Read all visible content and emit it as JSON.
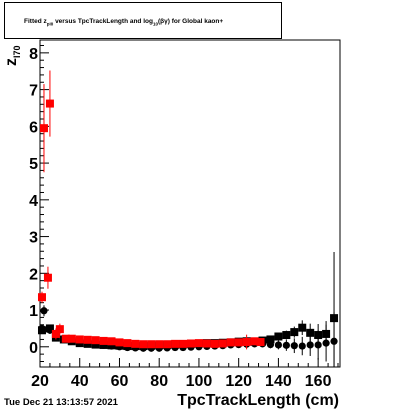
{
  "chart_data": {
    "type": "scatter",
    "title_parts": {
      "pre": "Fitted  z",
      "pre_sub": "pi0",
      "mid": "  versus  TpcTrackLength and log",
      "mid_sub": "10",
      "post": "(βγ) for Global kaon+"
    },
    "xlabel": "TpcTrackLength (cm)",
    "ylabel": "z",
    "ylabel_sub": "I70",
    "xlim": [
      20,
      171
    ],
    "ylim": [
      -0.55,
      8.35
    ],
    "x_ticks": [
      20,
      40,
      60,
      80,
      100,
      120,
      140,
      160
    ],
    "y_ticks": [
      0,
      1,
      2,
      3,
      4,
      5,
      6,
      7,
      8
    ],
    "grid": false,
    "footer": "Tue Dec 21 13:13:57 2021",
    "series": [
      {
        "color": "#ff0000",
        "marker": "square",
        "points": [
          {
            "x": 21,
            "y": 1.35,
            "err": 0.15
          },
          {
            "x": 22,
            "y": 5.95,
            "err": 1.2
          },
          {
            "x": 25,
            "y": 6.62,
            "err": 0.9
          },
          {
            "x": 24,
            "y": 1.88,
            "err": 0.3
          },
          {
            "x": 28,
            "y": 0.35,
            "err": 0.15
          },
          {
            "x": 30,
            "y": 0.48,
            "err": 0.15
          },
          {
            "x": 33,
            "y": 0.22,
            "err": 0.06
          },
          {
            "x": 36,
            "y": 0.22,
            "err": 0.05
          },
          {
            "x": 40,
            "y": 0.2,
            "err": 0.04
          },
          {
            "x": 44,
            "y": 0.19,
            "err": 0.04
          },
          {
            "x": 48,
            "y": 0.18,
            "err": 0.04
          },
          {
            "x": 52,
            "y": 0.16,
            "err": 0.03
          },
          {
            "x": 56,
            "y": 0.15,
            "err": 0.03
          },
          {
            "x": 60,
            "y": 0.12,
            "err": 0.03
          },
          {
            "x": 64,
            "y": 0.1,
            "err": 0.03
          },
          {
            "x": 68,
            "y": 0.08,
            "err": 0.03
          },
          {
            "x": 72,
            "y": 0.07,
            "err": 0.03
          },
          {
            "x": 76,
            "y": 0.07,
            "err": 0.03
          },
          {
            "x": 80,
            "y": 0.07,
            "err": 0.03
          },
          {
            "x": 84,
            "y": 0.07,
            "err": 0.03
          },
          {
            "x": 88,
            "y": 0.08,
            "err": 0.03
          },
          {
            "x": 92,
            "y": 0.08,
            "err": 0.03
          },
          {
            "x": 96,
            "y": 0.09,
            "err": 0.03
          },
          {
            "x": 100,
            "y": 0.1,
            "err": 0.03
          },
          {
            "x": 104,
            "y": 0.09,
            "err": 0.04
          },
          {
            "x": 108,
            "y": 0.08,
            "err": 0.04
          },
          {
            "x": 112,
            "y": 0.09,
            "err": 0.05
          },
          {
            "x": 116,
            "y": 0.12,
            "err": 0.07
          },
          {
            "x": 120,
            "y": 0.12,
            "err": 0.1
          },
          {
            "x": 124,
            "y": 0.13,
            "err": 0.2
          },
          {
            "x": 128,
            "y": 0.15,
            "err": 0.08
          },
          {
            "x": 131,
            "y": 0.13,
            "err": 0.06
          }
        ]
      },
      {
        "color": "#000000",
        "marker": "circle",
        "points": [
          {
            "x": 21,
            "y": 0.5,
            "err": 0.1
          },
          {
            "x": 22,
            "y": 0.98,
            "err": 0.15
          },
          {
            "x": 25,
            "y": 0.45,
            "err": 0.1
          },
          {
            "x": 28,
            "y": 0.3,
            "err": 0.06
          },
          {
            "x": 32,
            "y": 0.22,
            "err": 0.04
          },
          {
            "x": 36,
            "y": 0.18,
            "err": 0.03
          },
          {
            "x": 40,
            "y": 0.12,
            "err": 0.03
          },
          {
            "x": 44,
            "y": 0.09,
            "err": 0.02
          },
          {
            "x": 48,
            "y": 0.06,
            "err": 0.02
          },
          {
            "x": 52,
            "y": 0.04,
            "err": 0.02
          },
          {
            "x": 56,
            "y": 0.02,
            "err": 0.02
          },
          {
            "x": 60,
            "y": 0.0,
            "err": 0.02
          },
          {
            "x": 64,
            "y": -0.02,
            "err": 0.02
          },
          {
            "x": 68,
            "y": -0.03,
            "err": 0.02
          },
          {
            "x": 72,
            "y": -0.04,
            "err": 0.02
          },
          {
            "x": 76,
            "y": -0.04,
            "err": 0.02
          },
          {
            "x": 80,
            "y": -0.04,
            "err": 0.02
          },
          {
            "x": 84,
            "y": -0.03,
            "err": 0.02
          },
          {
            "x": 88,
            "y": -0.02,
            "err": 0.02
          },
          {
            "x": 92,
            "y": -0.02,
            "err": 0.02
          },
          {
            "x": 96,
            "y": -0.01,
            "err": 0.02
          },
          {
            "x": 100,
            "y": 0.0,
            "err": 0.02
          },
          {
            "x": 104,
            "y": 0.01,
            "err": 0.03
          },
          {
            "x": 108,
            "y": 0.02,
            "err": 0.03
          },
          {
            "x": 112,
            "y": 0.03,
            "err": 0.03
          },
          {
            "x": 116,
            "y": 0.05,
            "err": 0.04
          },
          {
            "x": 120,
            "y": 0.06,
            "err": 0.05
          },
          {
            "x": 124,
            "y": 0.07,
            "err": 0.06
          },
          {
            "x": 128,
            "y": 0.08,
            "err": 0.07
          },
          {
            "x": 132,
            "y": 0.08,
            "err": 0.08
          },
          {
            "x": 136,
            "y": 0.06,
            "err": 0.1
          },
          {
            "x": 140,
            "y": 0.05,
            "err": 0.12
          },
          {
            "x": 144,
            "y": 0.04,
            "err": 0.15
          },
          {
            "x": 148,
            "y": 0.03,
            "err": 0.2
          },
          {
            "x": 152,
            "y": 0.02,
            "err": 0.25
          },
          {
            "x": 156,
            "y": 0.05,
            "err": 0.3
          },
          {
            "x": 160,
            "y": 0.05,
            "err": 0.4
          },
          {
            "x": 164,
            "y": 0.1,
            "err": 0.5
          },
          {
            "x": 168,
            "y": 0.15,
            "err": 0.8
          }
        ]
      },
      {
        "color": "#000000",
        "marker": "square",
        "points": [
          {
            "x": 21,
            "y": 0.45,
            "err": 0.1
          },
          {
            "x": 25,
            "y": 0.5,
            "err": 0.1
          },
          {
            "x": 28,
            "y": 0.25,
            "err": 0.05
          },
          {
            "x": 32,
            "y": 0.2,
            "err": 0.04
          },
          {
            "x": 36,
            "y": 0.15,
            "err": 0.03
          },
          {
            "x": 40,
            "y": 0.1,
            "err": 0.03
          },
          {
            "x": 44,
            "y": 0.08,
            "err": 0.02
          },
          {
            "x": 48,
            "y": 0.06,
            "err": 0.02
          },
          {
            "x": 52,
            "y": 0.05,
            "err": 0.02
          },
          {
            "x": 56,
            "y": 0.04,
            "err": 0.02
          },
          {
            "x": 60,
            "y": 0.03,
            "err": 0.02
          },
          {
            "x": 64,
            "y": 0.02,
            "err": 0.02
          },
          {
            "x": 68,
            "y": 0.02,
            "err": 0.02
          },
          {
            "x": 72,
            "y": 0.02,
            "err": 0.02
          },
          {
            "x": 76,
            "y": 0.03,
            "err": 0.02
          },
          {
            "x": 80,
            "y": 0.04,
            "err": 0.02
          },
          {
            "x": 84,
            "y": 0.05,
            "err": 0.02
          },
          {
            "x": 88,
            "y": 0.06,
            "err": 0.02
          },
          {
            "x": 92,
            "y": 0.07,
            "err": 0.02
          },
          {
            "x": 96,
            "y": 0.08,
            "err": 0.03
          },
          {
            "x": 100,
            "y": 0.09,
            "err": 0.03
          },
          {
            "x": 104,
            "y": 0.1,
            "err": 0.03
          },
          {
            "x": 108,
            "y": 0.1,
            "err": 0.03
          },
          {
            "x": 112,
            "y": 0.11,
            "err": 0.04
          },
          {
            "x": 116,
            "y": 0.12,
            "err": 0.04
          },
          {
            "x": 120,
            "y": 0.14,
            "err": 0.05
          },
          {
            "x": 124,
            "y": 0.15,
            "err": 0.06
          },
          {
            "x": 128,
            "y": 0.14,
            "err": 0.06
          },
          {
            "x": 132,
            "y": 0.17,
            "err": 0.07
          },
          {
            "x": 136,
            "y": 0.2,
            "err": 0.08
          },
          {
            "x": 140,
            "y": 0.28,
            "err": 0.1
          },
          {
            "x": 144,
            "y": 0.32,
            "err": 0.12
          },
          {
            "x": 148,
            "y": 0.4,
            "err": 0.15
          },
          {
            "x": 152,
            "y": 0.52,
            "err": 0.2
          },
          {
            "x": 156,
            "y": 0.38,
            "err": 0.25
          },
          {
            "x": 160,
            "y": 0.32,
            "err": 0.3
          },
          {
            "x": 164,
            "y": 0.35,
            "err": 0.35
          },
          {
            "x": 168,
            "y": 0.78,
            "err": 1.8
          }
        ]
      }
    ]
  }
}
